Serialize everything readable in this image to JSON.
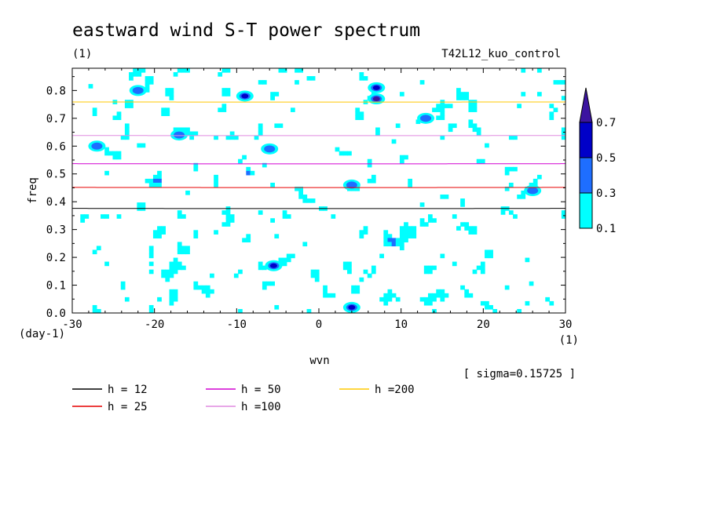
{
  "chart_data": {
    "type": "heatmap",
    "title": "eastward wind S-T power spectrum",
    "subtitle_left": "(1)",
    "subtitle_right": "T42L12_kuo_control",
    "xlabel": "wvn",
    "ylabel": "freq",
    "x_unit": "(1)",
    "y_unit": "(day-1)",
    "xlim": [
      -30,
      30
    ],
    "ylim": [
      0.0,
      0.88
    ],
    "x_ticks": [
      -30,
      -20,
      -10,
      0,
      10,
      20,
      30
    ],
    "x_tick_labels": [
      "-30",
      "-20",
      "-10",
      "0",
      "10",
      "20",
      "30"
    ],
    "y_ticks": [
      0.0,
      0.1,
      0.2,
      0.3,
      0.4,
      0.5,
      0.6,
      0.7,
      0.8
    ],
    "y_tick_labels": [
      "0.0",
      "0.1",
      "0.2",
      "0.3",
      "0.4",
      "0.5",
      "0.6",
      "0.7",
      "0.8"
    ],
    "sigma_label": "[ sigma=0.15725 ]",
    "color_levels": [
      {
        "min": 0.1,
        "max": 0.3,
        "color": "#00ffff"
      },
      {
        "min": 0.3,
        "max": 0.5,
        "color": "#1e6eff"
      },
      {
        "min": 0.5,
        "max": 0.7,
        "color": "#0000c8"
      },
      {
        "min": 0.7,
        "max": null,
        "color": "#3c14a0"
      }
    ],
    "colorbar_labels": [
      "0.7",
      "0.5",
      "0.3",
      "0.1"
    ],
    "dispersion_curves": [
      {
        "name": "h = 12",
        "h": 12,
        "color": "#000000"
      },
      {
        "name": "h = 25",
        "h": 25,
        "color": "#e60000"
      },
      {
        "name": "h = 50",
        "h": 50,
        "color": "#d200d2"
      },
      {
        "name": "h =100",
        "h": 100,
        "color": "#e08be0"
      },
      {
        "name": "h =200",
        "h": 200,
        "color": "#ffc800"
      }
    ],
    "hotspots": [
      {
        "wvn": 7.0,
        "freq": 0.77,
        "level": 0.7
      },
      {
        "wvn": 7.0,
        "freq": 0.81,
        "level": 0.5
      },
      {
        "wvn": -9.0,
        "freq": 0.78,
        "level": 0.5
      },
      {
        "wvn": 4.0,
        "freq": 0.02,
        "level": 0.5
      },
      {
        "wvn": -5.5,
        "freq": 0.17,
        "level": 0.5
      },
      {
        "wvn": 4.0,
        "freq": 0.46,
        "level": 0.3
      },
      {
        "wvn": -6.0,
        "freq": 0.59,
        "level": 0.3
      },
      {
        "wvn": -27.0,
        "freq": 0.6,
        "level": 0.3
      },
      {
        "wvn": -17.0,
        "freq": 0.64,
        "level": 0.3
      },
      {
        "wvn": 26.0,
        "freq": 0.44,
        "level": 0.3
      },
      {
        "wvn": -22.0,
        "freq": 0.8,
        "level": 0.3
      },
      {
        "wvn": 13.0,
        "freq": 0.7,
        "level": 0.3
      }
    ]
  }
}
